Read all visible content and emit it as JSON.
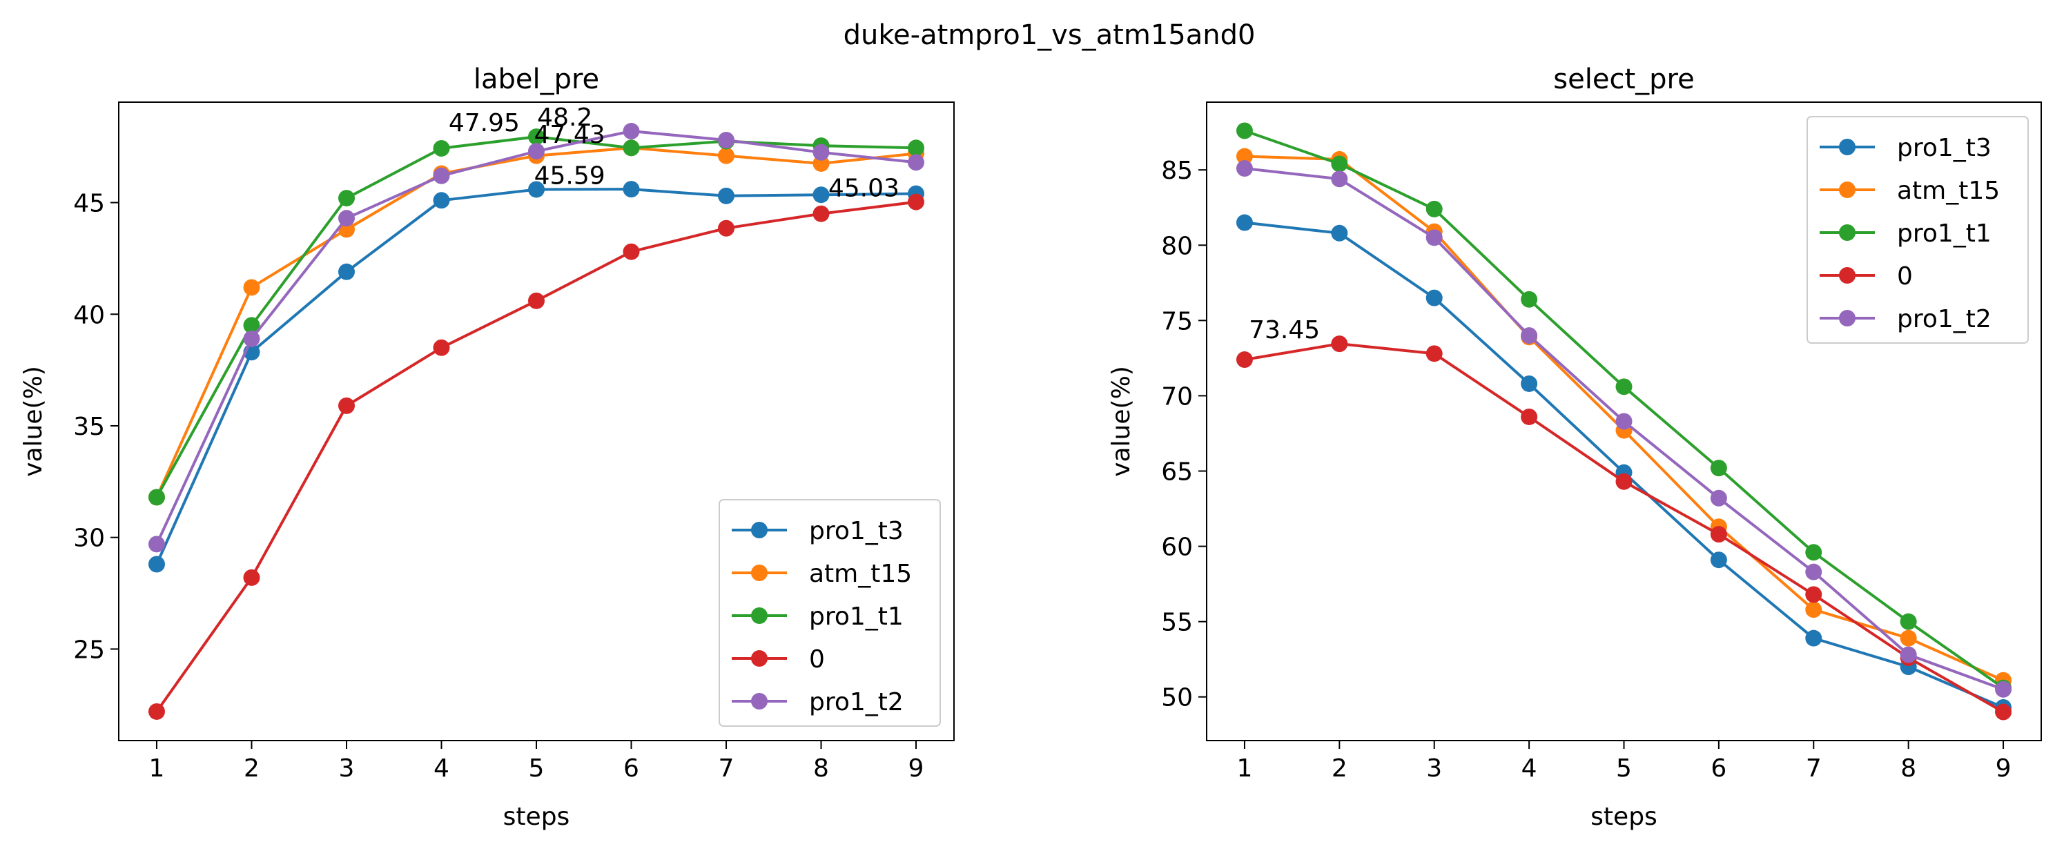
{
  "figure": {
    "title": "duke-atmpro1_vs_atm15and0"
  },
  "colors": {
    "pro1_t3": "#1f77b4",
    "atm_t15": "#ff7f0e",
    "pro1_t1": "#2ca02c",
    "0": "#d62728",
    "pro1_t2": "#9467bd"
  },
  "chart_data": [
    {
      "type": "line",
      "title": "label_pre",
      "xlabel": "steps",
      "ylabel": "value(%)",
      "x": [
        1,
        2,
        3,
        4,
        5,
        6,
        7,
        8,
        9
      ],
      "xlim": [
        0.6,
        9.4
      ],
      "ylim": [
        20.9,
        49.5
      ],
      "yticks": [
        25,
        30,
        35,
        40,
        45
      ],
      "legend": "lower-right",
      "series": [
        {
          "name": "pro1_t3",
          "values": [
            28.8,
            38.3,
            41.9,
            45.1,
            45.59,
            45.6,
            45.3,
            45.35,
            45.4
          ]
        },
        {
          "name": "atm_t15",
          "values": [
            31.8,
            41.2,
            43.8,
            46.3,
            47.1,
            47.45,
            47.1,
            46.75,
            47.2
          ]
        },
        {
          "name": "pro1_t1",
          "values": [
            31.8,
            39.5,
            45.2,
            47.43,
            47.95,
            47.45,
            47.75,
            47.55,
            47.45
          ]
        },
        {
          "name": "0",
          "values": [
            22.2,
            28.2,
            35.9,
            38.5,
            40.6,
            42.8,
            43.85,
            44.5,
            45.03
          ]
        },
        {
          "name": "pro1_t2",
          "values": [
            29.7,
            38.9,
            44.3,
            46.2,
            47.3,
            48.2,
            47.8,
            47.25,
            46.8
          ]
        }
      ],
      "annotations": [
        {
          "text": "47.95",
          "x": 4.45,
          "y": 47.95
        },
        {
          "text": "48.2",
          "x": 5.3,
          "y": 48.2
        },
        {
          "text": "47.43",
          "x": 5.35,
          "y": 47.43
        },
        {
          "text": "45.59",
          "x": 5.35,
          "y": 45.59
        },
        {
          "text": "45.03",
          "x": 8.45,
          "y": 45.03
        }
      ]
    },
    {
      "type": "line",
      "title": "select_pre",
      "xlabel": "steps",
      "ylabel": "value(%)",
      "x": [
        1,
        2,
        3,
        4,
        5,
        6,
        7,
        8,
        9
      ],
      "xlim": [
        0.6,
        9.4
      ],
      "ylim": [
        47.1,
        89.5
      ],
      "yticks": [
        50,
        55,
        60,
        65,
        70,
        75,
        80,
        85
      ],
      "legend": "upper-right",
      "series": [
        {
          "name": "pro1_t3",
          "values": [
            81.5,
            80.8,
            76.5,
            70.8,
            64.9,
            59.1,
            53.9,
            52.0,
            49.3
          ]
        },
        {
          "name": "atm_t15",
          "values": [
            85.9,
            85.7,
            80.9,
            73.9,
            67.7,
            61.3,
            55.8,
            53.9,
            51.1
          ]
        },
        {
          "name": "pro1_t1",
          "values": [
            87.6,
            85.4,
            82.4,
            76.4,
            70.6,
            65.2,
            59.6,
            55.0,
            50.6
          ]
        },
        {
          "name": "0",
          "values": [
            72.4,
            73.45,
            72.8,
            68.6,
            64.3,
            60.8,
            56.8,
            52.6,
            49.0
          ]
        },
        {
          "name": "pro1_t2",
          "values": [
            85.1,
            84.4,
            80.5,
            74.0,
            68.3,
            63.2,
            58.3,
            52.8,
            50.5
          ]
        }
      ],
      "annotations": [
        {
          "text": "73.45",
          "x": 1.42,
          "y": 73.45
        }
      ]
    }
  ]
}
